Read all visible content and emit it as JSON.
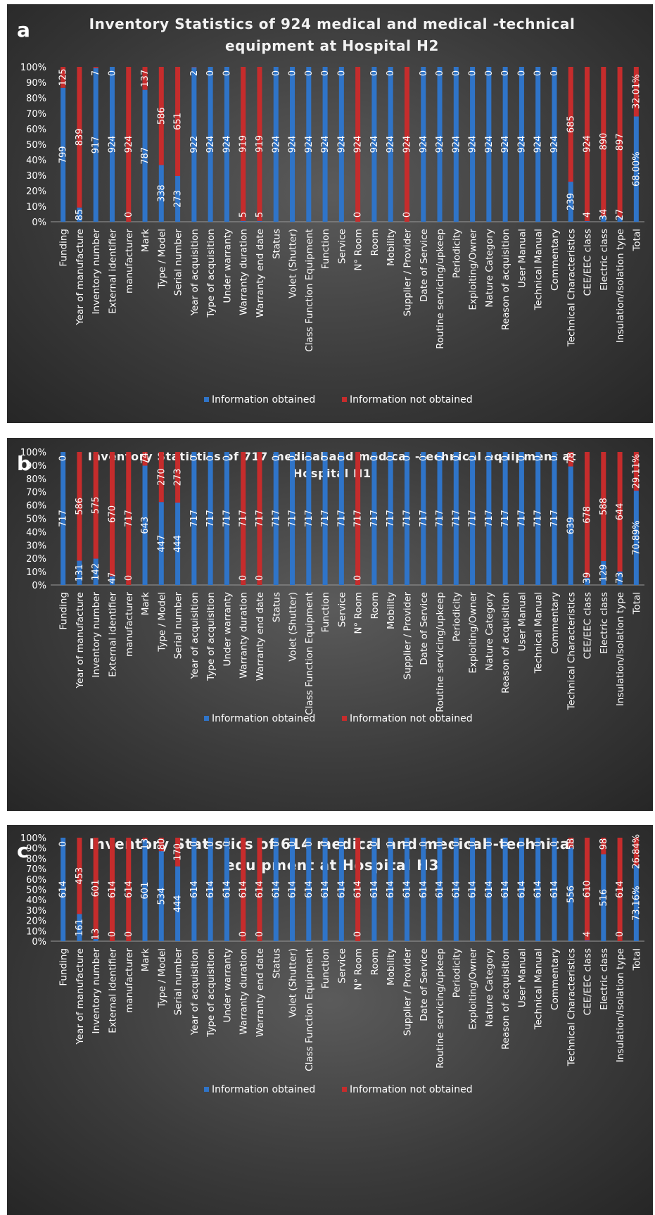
{
  "categories": [
    "Funding",
    "Year of manufacture",
    "Inventory number",
    "External identifier",
    "manufacturer",
    "Mark",
    "Type / Model",
    "Serial number",
    "Year of acquisition",
    "Type of acquisition",
    "Under warranty",
    "Warranty duration",
    "Warranty end date",
    "Status",
    "Volet (Shutter)",
    "Class Function Equipment",
    "Function",
    "Service",
    "N° Room",
    "Room",
    "Mobility",
    "Supplier / Provider",
    "Date of Service",
    "Routine servicing/upkeep",
    "Periodicity",
    "Exploiting/Owner",
    "Nature Category",
    "Reason of acquisition",
    "User Manual",
    "Technical Manual",
    "Commentary",
    "Technical Characteristics",
    "CEE/EEC class",
    "Electric class",
    "Insulation/Isolation type",
    "Total"
  ],
  "legend": {
    "obtained": "Information obtained",
    "not_obtained": "Information not obtained"
  },
  "colors": {
    "obtained": "#2f74c8",
    "not_obtained": "#c62c2c"
  },
  "chart_data": [
    {
      "type": "bar",
      "stacked": "percent",
      "letter": "a",
      "title_lines": [
        "Inventory Statistics of 924 medical and medical -technical",
        "equipment at Hospital H2"
      ],
      "y_ticks": [
        "0%",
        "10%",
        "20%",
        "30%",
        "40%",
        "50%",
        "60%",
        "70%",
        "80%",
        "90%",
        "100%"
      ],
      "ylim": [
        0,
        100
      ],
      "series": [
        {
          "name": "Information obtained",
          "values": [
            799,
            85,
            917,
            924,
            0,
            787,
            338,
            273,
            922,
            924,
            924,
            5,
            5,
            924,
            924,
            924,
            924,
            924,
            0,
            924,
            924,
            0,
            924,
            924,
            924,
            924,
            924,
            924,
            924,
            924,
            924,
            239,
            4,
            34,
            27,
            68.0
          ]
        },
        {
          "name": "Information not obtained",
          "values": [
            125,
            839,
            7,
            0,
            924,
            137,
            586,
            651,
            2,
            0,
            0,
            919,
            919,
            0,
            0,
            0,
            0,
            0,
            924,
            0,
            0,
            924,
            0,
            0,
            0,
            0,
            0,
            0,
            0,
            0,
            0,
            685,
            924,
            890,
            897,
            32.01
          ]
        }
      ],
      "labels_obtained": [
        "799",
        "85",
        "917",
        "924",
        "0",
        "787",
        "338",
        "273",
        "922",
        "924",
        "924",
        "5",
        "5",
        "924",
        "924",
        "924",
        "924",
        "924",
        "0",
        "924",
        "924",
        "0",
        "924",
        "924",
        "924",
        "924",
        "924",
        "924",
        "924",
        "924",
        "924",
        "239",
        "4",
        "34",
        "27",
        "68.00%"
      ],
      "labels_not_obtained": [
        "125",
        "839",
        "7",
        "0",
        "924",
        "137",
        "586",
        "651",
        "2",
        "0",
        "0",
        "919",
        "919",
        "0",
        "0",
        "0",
        "0",
        "0",
        "924",
        "0",
        "0",
        "924",
        "0",
        "0",
        "0",
        "0",
        "0",
        "0",
        "0",
        "0",
        "0",
        "685",
        "924",
        "890",
        "897",
        "32.01%"
      ]
    },
    {
      "type": "bar",
      "stacked": "percent",
      "letter": "b",
      "title_lines": [
        "Inventory Statistics of 717 medical and medical -technical equipment at",
        "Hospital H1"
      ],
      "y_ticks": [
        "0%",
        "10%",
        "20%",
        "30%",
        "40%",
        "50%",
        "60%",
        "70%",
        "80%",
        "90%",
        "100%"
      ],
      "ylim": [
        0,
        100
      ],
      "series": [
        {
          "name": "Information obtained",
          "values": [
            717,
            131,
            142,
            47,
            0,
            643,
            447,
            444,
            717,
            717,
            717,
            0,
            0,
            717,
            717,
            717,
            717,
            717,
            0,
            717,
            717,
            717,
            717,
            717,
            717,
            717,
            717,
            717,
            717,
            717,
            717,
            639,
            39,
            129,
            73,
            70.89
          ]
        },
        {
          "name": "Information not obtained",
          "values": [
            0,
            586,
            575,
            670,
            717,
            74,
            270,
            273,
            0,
            0,
            0,
            717,
            717,
            0,
            0,
            0,
            0,
            0,
            717,
            0,
            0,
            0,
            0,
            0,
            0,
            0,
            0,
            0,
            0,
            0,
            0,
            78,
            678,
            588,
            644,
            29.11
          ]
        }
      ],
      "labels_obtained": [
        "717",
        "131",
        "142",
        "47",
        "0",
        "643",
        "447",
        "444",
        "717",
        "717",
        "717",
        "0",
        "0",
        "717",
        "717",
        "717",
        "717",
        "717",
        "0",
        "717",
        "717",
        "717",
        "717",
        "717",
        "717",
        "717",
        "717",
        "717",
        "717",
        "717",
        "717",
        "639",
        "39",
        "129",
        "73",
        "70.89%"
      ],
      "labels_not_obtained": [
        "0",
        "586",
        "575",
        "670",
        "717",
        "74",
        "270",
        "273",
        "0",
        "0",
        "0",
        "717",
        "717",
        "0",
        "0",
        "0",
        "0",
        "0",
        "717",
        "0",
        "0",
        "0",
        "0",
        "0",
        "0",
        "0",
        "0",
        "0",
        "0",
        "0",
        "0",
        "78",
        "678",
        "588",
        "644",
        "29.11%"
      ]
    },
    {
      "type": "bar",
      "stacked": "percent",
      "letter": "c",
      "title_lines": [
        "Inventory Statistics of 614 medical and medical -technical",
        "equipment at Hospital H3"
      ],
      "y_ticks": [
        "0%",
        "10%",
        "20%",
        "30%",
        "40%",
        "50%",
        "60%",
        "70%",
        "80%",
        "90%",
        "100%"
      ],
      "ylim": [
        0,
        100
      ],
      "series": [
        {
          "name": "Information obtained",
          "values": [
            614,
            161,
            13,
            0,
            0,
            601,
            534,
            444,
            614,
            614,
            614,
            0,
            0,
            614,
            614,
            614,
            614,
            614,
            0,
            614,
            614,
            614,
            614,
            614,
            614,
            614,
            614,
            614,
            614,
            614,
            614,
            556,
            4,
            516,
            0,
            73.16
          ]
        },
        {
          "name": "Information not obtained",
          "values": [
            0,
            453,
            601,
            614,
            614,
            13,
            80,
            170,
            0,
            0,
            0,
            614,
            614,
            0,
            0,
            0,
            0,
            0,
            614,
            0,
            0,
            0,
            0,
            0,
            0,
            0,
            0,
            0,
            0,
            0,
            0,
            58,
            610,
            98,
            614,
            26.84
          ]
        }
      ],
      "labels_obtained": [
        "614",
        "161",
        "13",
        "0",
        "0",
        "601",
        "534",
        "444",
        "614",
        "614",
        "614",
        "0",
        "0",
        "614",
        "614",
        "614",
        "614",
        "614",
        "0",
        "614",
        "614",
        "614",
        "614",
        "614",
        "614",
        "614",
        "614",
        "614",
        "614",
        "614",
        "614",
        "556",
        "4",
        "516",
        "0",
        "73.16%"
      ],
      "labels_not_obtained": [
        "0",
        "453",
        "601",
        "614",
        "614",
        "13",
        "80",
        "170",
        "0",
        "0",
        "0",
        "614",
        "614",
        "0",
        "0",
        "0",
        "0",
        "0",
        "614",
        "0",
        "0",
        "0",
        "0",
        "0",
        "0",
        "0",
        "0",
        "0",
        "0",
        "0",
        "0",
        "58",
        "610",
        "98",
        "614",
        "26.84%"
      ]
    }
  ]
}
